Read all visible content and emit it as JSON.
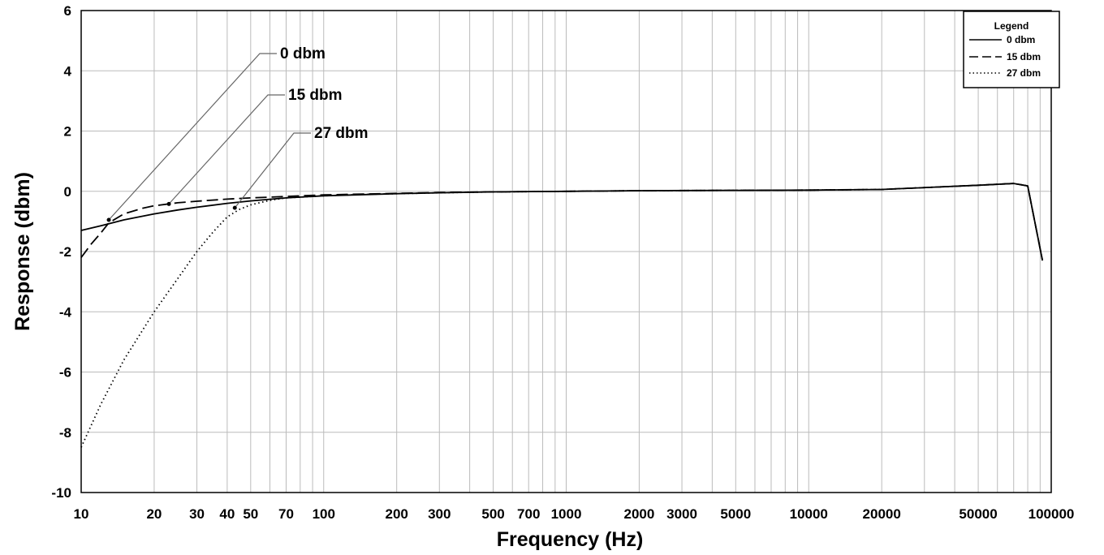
{
  "chart_data": {
    "type": "line",
    "title": "",
    "xlabel": "Frequency (Hz)",
    "ylabel": "Response (dbm)",
    "x_scale": "log",
    "xlim": [
      10,
      100000
    ],
    "ylim": [
      -10,
      6
    ],
    "grid": true,
    "legend_position": "top-right",
    "legend_title": "Legend",
    "x_tick_values": [
      10,
      20,
      30,
      40,
      50,
      70,
      100,
      200,
      300,
      500,
      700,
      1000,
      2000,
      3000,
      5000,
      10000,
      20000,
      50000,
      100000
    ],
    "x_tick_labels": [
      "10",
      "20",
      "30",
      "40",
      "50",
      "70",
      "100",
      "200",
      "300",
      "500",
      "700",
      "1000",
      "2000",
      "3000",
      "5000",
      "10000",
      "20000",
      "50000",
      "100000"
    ],
    "y_tick_values": [
      6,
      4,
      2,
      0,
      -2,
      -4,
      -6,
      -8,
      -10
    ],
    "y_tick_labels": [
      "6",
      "4",
      "2",
      "0",
      "-2",
      "-4",
      "-6",
      "-8",
      "-10"
    ],
    "series": [
      {
        "name": "0 dbm",
        "style": "solid",
        "x": [
          10,
          12,
          15,
          20,
          25,
          30,
          40,
          50,
          70,
          100,
          200,
          300,
          500,
          1000,
          2000,
          5000,
          10000,
          20000,
          50000,
          70000,
          80000,
          92000
        ],
        "y": [
          -1.3,
          -1.15,
          -0.95,
          -0.75,
          -0.62,
          -0.53,
          -0.4,
          -0.32,
          -0.22,
          -0.15,
          -0.08,
          -0.05,
          -0.02,
          0,
          0.02,
          0.03,
          0.04,
          0.06,
          0.2,
          0.26,
          0.18,
          -2.3
        ]
      },
      {
        "name": "15 dbm",
        "style": "dashed",
        "x": [
          10,
          11,
          12,
          13,
          15,
          18,
          20,
          25,
          30,
          40,
          50,
          70,
          100,
          200,
          300,
          500,
          1000,
          2000,
          5000,
          10000,
          20000,
          50000,
          70000,
          80000,
          92000
        ],
        "y": [
          -2.2,
          -1.75,
          -1.4,
          -1.05,
          -0.75,
          -0.56,
          -0.48,
          -0.38,
          -0.33,
          -0.26,
          -0.22,
          -0.17,
          -0.12,
          -0.07,
          -0.04,
          -0.02,
          0,
          0.02,
          0.03,
          0.04,
          0.06,
          0.2,
          0.26,
          0.18,
          -2.3
        ]
      },
      {
        "name": "27 dbm",
        "style": "dotted",
        "x": [
          10,
          12,
          15,
          20,
          25,
          30,
          35,
          40,
          45,
          50,
          60,
          70,
          100,
          150,
          200,
          300,
          500,
          1000,
          2000,
          5000,
          10000,
          20000,
          50000,
          70000,
          80000,
          92000
        ],
        "y": [
          -8.5,
          -7.1,
          -5.6,
          -4.0,
          -2.9,
          -2.0,
          -1.35,
          -0.85,
          -0.6,
          -0.45,
          -0.3,
          -0.22,
          -0.15,
          -0.1,
          -0.08,
          -0.05,
          -0.02,
          0,
          0.02,
          0.03,
          0.04,
          0.06,
          0.2,
          0.26,
          0.18,
          -2.3
        ]
      }
    ],
    "annotations": [
      {
        "label": "0 dbm",
        "target_x": 13,
        "target_y": -0.95
      },
      {
        "label": "15 dbm",
        "target_x": 23,
        "target_y": -0.42
      },
      {
        "label": "27 dbm",
        "target_x": 43,
        "target_y": -0.55
      }
    ]
  },
  "colors": {
    "background": "#ffffff",
    "grid": "#bbbbbb",
    "axis": "#000000",
    "line": "#000000"
  }
}
